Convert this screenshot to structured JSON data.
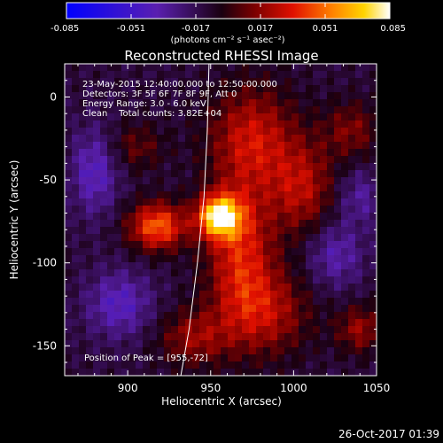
{
  "chart_data": {
    "type": "heatmap",
    "title": "Reconstructed RHESSI Image",
    "xlabel": "Heliocentric X (arcsec)",
    "ylabel": "Heliocentric Y (arcsec)",
    "xlim": [
      862,
      1050
    ],
    "ylim": [
      -168,
      20
    ],
    "x_ticks": [
      "900",
      "950",
      "1000",
      "1050"
    ],
    "y_ticks": [
      "0",
      "-50",
      "-100",
      "-150"
    ],
    "colorbar": {
      "range": [
        -0.085,
        0.085
      ],
      "ticks": [
        "-0.085",
        "-0.051",
        "-0.017",
        "0.017",
        "0.051",
        "0.085"
      ],
      "unit_label": "(photons cm⁻² s⁻¹ asec⁻²)"
    },
    "info_lines": [
      "23-May-2015 12:40:00.000 to 12:50:00.000",
      "Detectors: 3F 5F 6F 7F 8F 9F, Att 0",
      "Energy Range: 3.0 - 6.0 keV",
      "Clean    Total counts: 3.82E+04"
    ],
    "peak_label": "Position of Peak = [955,-72]",
    "peak": [
      955,
      -72
    ],
    "limb_curve": [
      [
        949,
        20
      ],
      [
        948,
        -20
      ],
      [
        946,
        -60
      ],
      [
        942,
        -100
      ],
      [
        937,
        -140
      ],
      [
        932,
        -168
      ]
    ],
    "blobs": [
      {
        "x": 955,
        "y": -72,
        "sx": 9,
        "sy": 9,
        "amp": 0.085
      },
      {
        "x": 918,
        "y": -78,
        "sx": 12,
        "sy": 10,
        "amp": 0.06
      },
      {
        "x": 968,
        "y": -95,
        "sx": 14,
        "sy": 30,
        "amp": 0.045
      },
      {
        "x": 975,
        "y": -25,
        "sx": 18,
        "sy": 22,
        "amp": 0.04
      },
      {
        "x": 1005,
        "y": -55,
        "sx": 14,
        "sy": 20,
        "amp": 0.035
      },
      {
        "x": 985,
        "y": -130,
        "sx": 18,
        "sy": 18,
        "amp": 0.032
      },
      {
        "x": 940,
        "y": -145,
        "sx": 15,
        "sy": 12,
        "amp": 0.03
      },
      {
        "x": 1040,
        "y": -140,
        "sx": 10,
        "sy": 10,
        "amp": 0.03
      },
      {
        "x": 1035,
        "y": -20,
        "sx": 12,
        "sy": 12,
        "amp": 0.025
      },
      {
        "x": 905,
        "y": -30,
        "sx": 12,
        "sy": 10,
        "amp": 0.02
      },
      {
        "x": 880,
        "y": -45,
        "sx": 10,
        "sy": 18,
        "amp": -0.03
      },
      {
        "x": 895,
        "y": -125,
        "sx": 14,
        "sy": 14,
        "amp": -0.03
      },
      {
        "x": 1025,
        "y": -95,
        "sx": 12,
        "sy": 14,
        "amp": -0.025
      },
      {
        "x": 1040,
        "y": -60,
        "sx": 10,
        "sy": 12,
        "amp": -0.02
      }
    ]
  },
  "footer": {
    "timestamp": "26-Oct-2017 01:39"
  }
}
